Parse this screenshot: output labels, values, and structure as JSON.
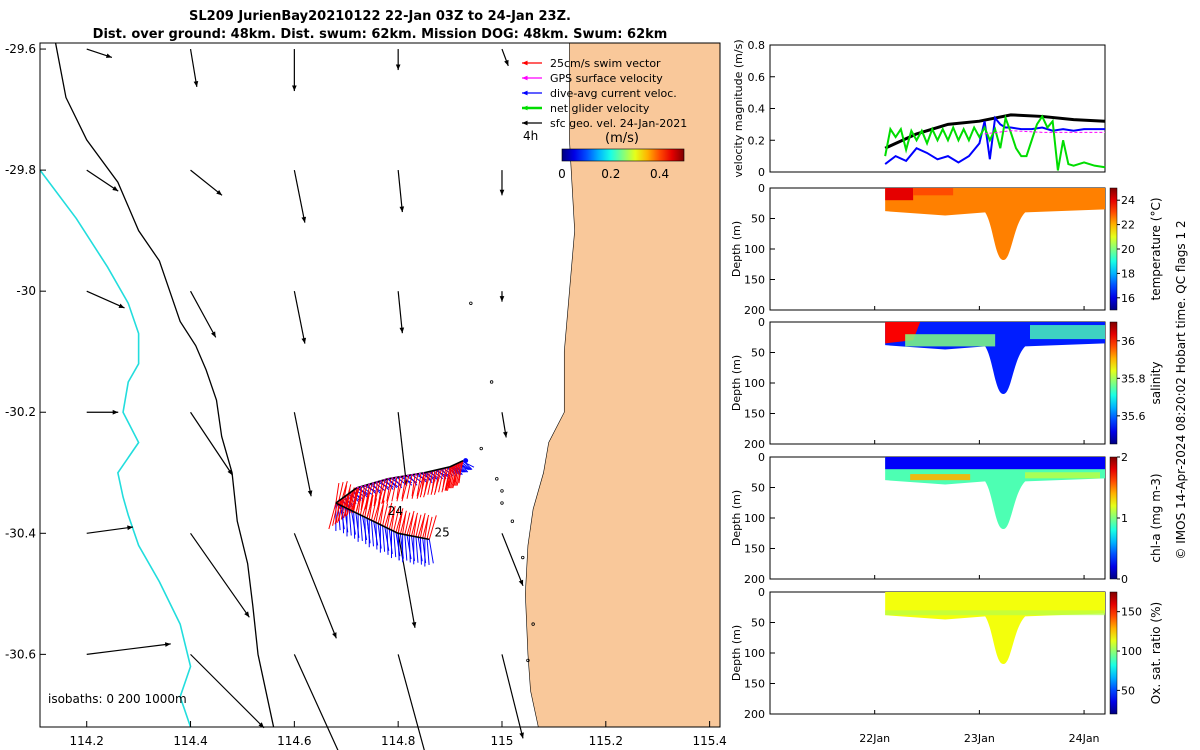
{
  "title": {
    "line1": "SL209 JurienBay20210122 22-Jan 03Z to 24-Jan 23Z.",
    "line2": "Dist. over ground: 48km. Dist. swum: 62km. Mission DOG: 48km. Swum: 62km"
  },
  "colors": {
    "land": "#F9C89A",
    "isobath_shallow": "#000000",
    "isobath_deep": "#22DDDD",
    "swim": "#FF0000",
    "gps": "#FF00FF",
    "current": "#0000FF",
    "net": "#00DD00",
    "geo": "#000000"
  },
  "chart_data": [
    {
      "id": "map",
      "type": "map",
      "x_ticks": [
        "114.2",
        "114.4",
        "114.6",
        "114.8",
        "115",
        "115.2",
        "115.4"
      ],
      "y_ticks": [
        "-29.6",
        "-29.8",
        "-30",
        "-30.2",
        "-30.4",
        "-30.6"
      ],
      "xlim": [
        114.11,
        115.42
      ],
      "ylim": [
        -30.72,
        -29.59
      ],
      "legend": [
        "25cm/s swim vector",
        "GPS surface velocity",
        "dive-avg current veloc.",
        "net glider velocity",
        "sfc geo. vel. 24-Jan-2021"
      ],
      "legend_time": "4h",
      "colorbar": {
        "label": "(m/s)",
        "ticks": [
          "0",
          "0.2",
          "0.4"
        ],
        "range": [
          0,
          0.5
        ]
      },
      "isobaths_label": "isobaths: 0   200  1000m",
      "day_labels": [
        "24",
        "25"
      ],
      "track": [
        [
          114.68,
          -30.35
        ],
        [
          114.72,
          -30.325
        ],
        [
          114.78,
          -30.31
        ],
        [
          114.85,
          -30.3
        ],
        [
          114.9,
          -30.29
        ],
        [
          114.925,
          -30.28
        ]
      ],
      "track_lower": [
        [
          114.68,
          -30.35
        ],
        [
          114.74,
          -30.375
        ],
        [
          114.8,
          -30.4
        ],
        [
          114.86,
          -30.41
        ]
      ],
      "geo_vectors": [
        {
          "lon": 114.2,
          "lat": -29.6,
          "u": 0.012,
          "v": -0.004
        },
        {
          "lon": 114.4,
          "lat": -29.6,
          "u": 0.003,
          "v": -0.018
        },
        {
          "lon": 114.6,
          "lat": -29.6,
          "u": 0.0,
          "v": -0.02
        },
        {
          "lon": 114.8,
          "lat": -29.6,
          "u": 0.0,
          "v": -0.01
        },
        {
          "lon": 115.0,
          "lat": -29.6,
          "u": 0.003,
          "v": -0.008
        },
        {
          "lon": 114.2,
          "lat": -29.8,
          "u": 0.015,
          "v": -0.01
        },
        {
          "lon": 114.4,
          "lat": -29.8,
          "u": 0.015,
          "v": -0.012
        },
        {
          "lon": 114.6,
          "lat": -29.8,
          "u": 0.005,
          "v": -0.025
        },
        {
          "lon": 114.8,
          "lat": -29.8,
          "u": 0.002,
          "v": -0.02
        },
        {
          "lon": 115.0,
          "lat": -29.8,
          "u": 0.0,
          "v": -0.012
        },
        {
          "lon": 114.2,
          "lat": -30.0,
          "u": 0.018,
          "v": -0.008
        },
        {
          "lon": 114.4,
          "lat": -30.0,
          "u": 0.012,
          "v": -0.022
        },
        {
          "lon": 114.6,
          "lat": -30.0,
          "u": 0.005,
          "v": -0.025
        },
        {
          "lon": 114.8,
          "lat": -30.0,
          "u": 0.002,
          "v": -0.02
        },
        {
          "lon": 115.0,
          "lat": -30.0,
          "u": 0.0,
          "v": -0.005
        },
        {
          "lon": 114.2,
          "lat": -30.2,
          "u": 0.015,
          "v": 0.0
        },
        {
          "lon": 114.4,
          "lat": -30.2,
          "u": 0.02,
          "v": -0.03
        },
        {
          "lon": 114.6,
          "lat": -30.2,
          "u": 0.008,
          "v": -0.04
        },
        {
          "lon": 114.8,
          "lat": -30.2,
          "u": 0.004,
          "v": -0.035
        },
        {
          "lon": 115.0,
          "lat": -30.2,
          "u": 0.002,
          "v": -0.012
        },
        {
          "lon": 114.2,
          "lat": -30.4,
          "u": 0.022,
          "v": 0.003
        },
        {
          "lon": 114.4,
          "lat": -30.4,
          "u": 0.028,
          "v": -0.04
        },
        {
          "lon": 114.6,
          "lat": -30.4,
          "u": 0.02,
          "v": -0.05
        },
        {
          "lon": 114.8,
          "lat": -30.4,
          "u": 0.008,
          "v": -0.045
        },
        {
          "lon": 115.0,
          "lat": -30.4,
          "u": 0.01,
          "v": -0.025
        },
        {
          "lon": 114.2,
          "lat": -30.6,
          "u": 0.04,
          "v": 0.005
        },
        {
          "lon": 114.4,
          "lat": -30.6,
          "u": 0.035,
          "v": -0.035
        },
        {
          "lon": 114.6,
          "lat": -30.6,
          "u": 0.025,
          "v": -0.055
        },
        {
          "lon": 114.8,
          "lat": -30.6,
          "u": 0.015,
          "v": -0.055
        },
        {
          "lon": 115.0,
          "lat": -30.6,
          "u": 0.01,
          "v": -0.04
        }
      ],
      "coast": [
        [
          115.42,
          -29.59
        ],
        [
          115.13,
          -29.59
        ],
        [
          115.13,
          -29.75
        ],
        [
          115.14,
          -29.9
        ],
        [
          115.13,
          -30.0
        ],
        [
          115.12,
          -30.1
        ],
        [
          115.12,
          -30.2
        ],
        [
          115.09,
          -30.25
        ],
        [
          115.08,
          -30.3
        ],
        [
          115.06,
          -30.36
        ],
        [
          115.05,
          -30.42
        ],
        [
          115.045,
          -30.5
        ],
        [
          115.05,
          -30.6
        ],
        [
          115.055,
          -30.66
        ],
        [
          115.07,
          -30.72
        ],
        [
          115.42,
          -30.72
        ]
      ],
      "isobath_0": [
        [
          114.14,
          -29.59
        ],
        [
          114.16,
          -29.68
        ],
        [
          114.2,
          -29.75
        ],
        [
          114.26,
          -29.82
        ],
        [
          114.3,
          -29.9
        ],
        [
          114.34,
          -29.95
        ],
        [
          114.36,
          -30.0
        ],
        [
          114.38,
          -30.05
        ],
        [
          114.41,
          -30.09
        ],
        [
          114.43,
          -30.13
        ],
        [
          114.45,
          -30.18
        ],
        [
          114.46,
          -30.24
        ],
        [
          114.48,
          -30.3
        ],
        [
          114.49,
          -30.38
        ],
        [
          114.51,
          -30.45
        ],
        [
          114.52,
          -30.52
        ],
        [
          114.53,
          -30.6
        ],
        [
          114.56,
          -30.72
        ]
      ],
      "isobath_200": [
        [
          114.11,
          -29.8
        ],
        [
          114.18,
          -29.88
        ],
        [
          114.24,
          -29.96
        ],
        [
          114.28,
          -30.02
        ],
        [
          114.3,
          -30.07
        ],
        [
          114.3,
          -30.12
        ],
        [
          114.28,
          -30.15
        ],
        [
          114.27,
          -30.2
        ],
        [
          114.3,
          -30.25
        ],
        [
          114.26,
          -30.3
        ],
        [
          114.27,
          -30.34
        ],
        [
          114.28,
          -30.37
        ],
        [
          114.3,
          -30.42
        ],
        [
          114.34,
          -30.48
        ],
        [
          114.38,
          -30.55
        ],
        [
          114.4,
          -30.62
        ],
        [
          114.38,
          -30.67
        ],
        [
          114.4,
          -30.72
        ]
      ]
    },
    {
      "id": "velocity",
      "type": "line",
      "ylabel": "velocity magnitude (m/s)",
      "ylim": [
        0,
        0.8
      ],
      "y_ticks": [
        "0",
        "0.2",
        "0.4",
        "0.6",
        "0.8"
      ],
      "xlim": [
        0,
        3.2
      ],
      "series": [
        {
          "name": "sfc geo. vel.",
          "x": [
            1.1,
            1.4,
            1.7,
            2.0,
            2.3,
            2.6,
            2.9,
            3.2
          ],
          "y": [
            0.15,
            0.24,
            0.3,
            0.32,
            0.36,
            0.35,
            0.33,
            0.32
          ]
        },
        {
          "name": "dive-avg current veloc.",
          "x": [
            1.1,
            1.2,
            1.3,
            1.4,
            1.5,
            1.6,
            1.7,
            1.8,
            1.9,
            2.0,
            2.05,
            2.1,
            2.15,
            2.2,
            2.25,
            2.3,
            2.4,
            2.5,
            2.6,
            2.7,
            2.8,
            2.9,
            3.0,
            3.1,
            3.2
          ],
          "y": [
            0.05,
            0.1,
            0.07,
            0.15,
            0.12,
            0.08,
            0.1,
            0.06,
            0.1,
            0.18,
            0.32,
            0.08,
            0.34,
            0.3,
            0.28,
            0.28,
            0.27,
            0.27,
            0.28,
            0.26,
            0.27,
            0.26,
            0.27,
            0.27,
            0.27
          ]
        },
        {
          "name": "net glider velocity",
          "x": [
            1.1,
            1.15,
            1.2,
            1.25,
            1.3,
            1.35,
            1.4,
            1.45,
            1.5,
            1.55,
            1.6,
            1.65,
            1.7,
            1.75,
            1.8,
            1.85,
            1.9,
            1.95,
            2.0,
            2.05,
            2.1,
            2.15,
            2.2,
            2.25,
            2.3,
            2.35,
            2.4,
            2.45,
            2.5,
            2.55,
            2.6,
            2.65,
            2.7,
            2.75,
            2.8,
            2.85,
            2.9,
            3.0,
            3.1,
            3.2
          ],
          "y": [
            0.1,
            0.27,
            0.22,
            0.27,
            0.14,
            0.26,
            0.2,
            0.26,
            0.18,
            0.27,
            0.2,
            0.27,
            0.2,
            0.28,
            0.2,
            0.27,
            0.2,
            0.28,
            0.22,
            0.28,
            0.2,
            0.27,
            0.15,
            0.34,
            0.25,
            0.15,
            0.1,
            0.1,
            0.2,
            0.3,
            0.35,
            0.28,
            0.32,
            0.01,
            0.2,
            0.05,
            0.04,
            0.06,
            0.04,
            0.03
          ]
        },
        {
          "name": "GPS surface velocity",
          "x": [
            2.05,
            2.3,
            2.6,
            2.9,
            3.2
          ],
          "y": [
            0.24,
            0.26,
            0.25,
            0.25,
            0.25
          ]
        }
      ]
    },
    {
      "id": "temperature",
      "type": "heatmap",
      "ylabel": "Depth (m)",
      "ylim": [
        0,
        200
      ],
      "y_ticks": [
        "0",
        "50",
        "100",
        "150",
        "200"
      ],
      "colorbar": {
        "label": "temperature (°C)",
        "ticks": [
          "16",
          "18",
          "20",
          "22",
          "24"
        ],
        "range": [
          15,
          25
        ]
      },
      "dominant_value": 22.5
    },
    {
      "id": "salinity",
      "type": "heatmap",
      "ylabel": "Depth (m)",
      "ylim": [
        0,
        200
      ],
      "y_ticks": [
        "0",
        "50",
        "100",
        "150",
        "200"
      ],
      "colorbar": {
        "label": "salinity",
        "ticks": [
          "35.6",
          "35.8",
          "36"
        ],
        "range": [
          35.45,
          36.1
        ]
      },
      "dominant_value": 35.55
    },
    {
      "id": "chla",
      "type": "heatmap",
      "ylabel": "Depth (m)",
      "ylim": [
        0,
        200
      ],
      "y_ticks": [
        "0",
        "50",
        "100",
        "150",
        "200"
      ],
      "colorbar": {
        "label": "chl-a (mg m-3)",
        "ticks": [
          "0",
          "1",
          "2"
        ],
        "range": [
          0,
          2
        ]
      },
      "dominant_value": 0.9
    },
    {
      "id": "oxygen",
      "type": "heatmap",
      "ylabel": "Depth (m)",
      "ylim": [
        0,
        200
      ],
      "y_ticks": [
        "0",
        "50",
        "100",
        "150",
        "200"
      ],
      "x_ticks": [
        "22Jan",
        "23Jan",
        "24Jan"
      ],
      "colorbar": {
        "label": "Ox. sat. ratio (%)",
        "ticks": [
          "50",
          "100",
          "150"
        ],
        "range": [
          20,
          175
        ]
      },
      "dominant_value": 115
    }
  ],
  "footer": "© IMOS 14-Apr-2024 08:20:02 Hobart time. QC flags 1  2"
}
